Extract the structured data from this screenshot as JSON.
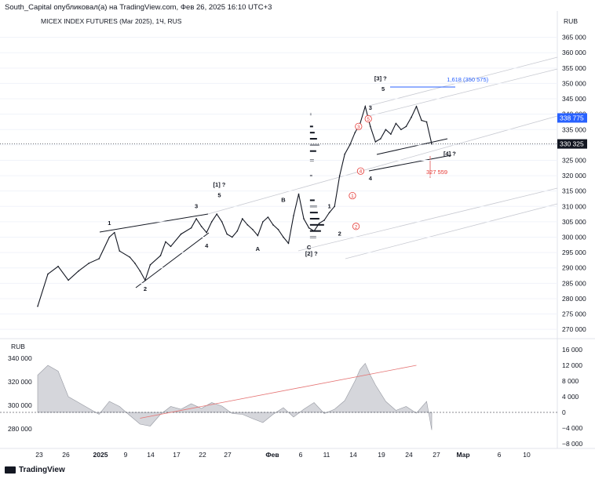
{
  "header": {
    "attribution": "South_Capital опубликовал(а) на TradingView.com, Фев 26, 2025 16:10 UTC+3"
  },
  "symbol": {
    "title": "MICEX INDEX FUTURES (Mar 2025), 1Ч, RUS"
  },
  "currency": {
    "main": "RUB",
    "lower": "RUB"
  },
  "footer": {
    "brand": "TradingView"
  },
  "chart_data": [
    {
      "type": "line",
      "name": "price",
      "title": "MICEX INDEX FUTURES (Mar 2025), 1Ч, RUS",
      "ylim": [
        268000,
        370000
      ],
      "yticks": [
        365000,
        360000,
        355000,
        350000,
        345000,
        340000,
        335000,
        330000,
        325000,
        320000,
        315000,
        310000,
        305000,
        300000,
        295000,
        290000,
        285000,
        280000,
        275000,
        270000
      ],
      "x_days": [
        "23",
        "26",
        "2025",
        "9",
        "14",
        "17",
        "22",
        "27",
        "Фев",
        "6",
        "11",
        "14",
        "19",
        "24",
        "27",
        "Мар",
        "6",
        "10"
      ],
      "series": [
        {
          "name": "MIX hourly close (approx.)",
          "points": [
            [
              0,
              277500
            ],
            [
              2,
              288000
            ],
            [
              4,
              290500
            ],
            [
              6,
              286000
            ],
            [
              8,
              289000
            ],
            [
              10,
              291500
            ],
            [
              12,
              293000
            ],
            [
              14,
              300000
            ],
            [
              15,
              301500
            ],
            [
              16,
              295500
            ],
            [
              18,
              293500
            ],
            [
              19,
              291500
            ],
            [
              20,
              289000
            ],
            [
              21,
              286000
            ],
            [
              22,
              291000
            ],
            [
              24,
              294000
            ],
            [
              25,
              298500
            ],
            [
              26,
              297000
            ],
            [
              28,
              301000
            ],
            [
              30,
              303000
            ],
            [
              31,
              306000
            ],
            [
              32,
              303500
            ],
            [
              33,
              301500
            ],
            [
              34,
              305000
            ],
            [
              35,
              307500
            ],
            [
              36,
              305000
            ],
            [
              37,
              301000
            ],
            [
              38,
              300000
            ],
            [
              39,
              302000
            ],
            [
              40,
              306000
            ],
            [
              41,
              304000
            ],
            [
              42,
              302500
            ],
            [
              43,
              300500
            ],
            [
              44,
              305000
            ],
            [
              45,
              306500
            ],
            [
              46,
              304000
            ],
            [
              47,
              302500
            ],
            [
              48,
              300000
            ],
            [
              49,
              298000
            ],
            [
              50,
              307000
            ],
            [
              51,
              314000
            ],
            [
              52,
              306000
            ],
            [
              53,
              303000
            ],
            [
              54,
              302000
            ],
            [
              55,
              304500
            ],
            [
              56,
              305500
            ],
            [
              57,
              308000
            ],
            [
              58,
              310000
            ],
            [
              59,
              320000
            ],
            [
              60,
              327000
            ],
            [
              61,
              330000
            ],
            [
              62,
              334000
            ],
            [
              63,
              337000
            ],
            [
              64,
              342500
            ],
            [
              65,
              336000
            ],
            [
              66,
              331000
            ],
            [
              67,
              332000
            ],
            [
              68,
              335000
            ],
            [
              69,
              333500
            ],
            [
              70,
              337000
            ],
            [
              71,
              335000
            ],
            [
              72,
              336000
            ],
            [
              73,
              339000
            ],
            [
              74,
              342500
            ],
            [
              75,
              338000
            ],
            [
              76,
              337500
            ],
            [
              77,
              330325
            ]
          ]
        }
      ],
      "price_labels": [
        {
          "value": 338775,
          "text": "338 775",
          "color": "#2962ff"
        },
        {
          "value": 330325,
          "text": "330 325",
          "color": "#131722"
        }
      ],
      "annotations": [
        {
          "text": "1",
          "x": 14,
          "y": 304000
        },
        {
          "text": "2",
          "x": 21,
          "y": 282500
        },
        {
          "text": "3",
          "x": 31,
          "y": 309500
        },
        {
          "text": "4",
          "x": 33,
          "y": 296500
        },
        {
          "text": "5",
          "x": 35.5,
          "y": 313000
        },
        {
          "text": "[1] ?",
          "x": 35.5,
          "y": 316500
        },
        {
          "text": "A",
          "x": 43,
          "y": 295500
        },
        {
          "text": "B",
          "x": 48,
          "y": 311500
        },
        {
          "text": "C",
          "x": 53,
          "y": 296000
        },
        {
          "text": "[2] ?",
          "x": 53.5,
          "y": 294000
        },
        {
          "text": "1",
          "x": 57,
          "y": 309500
        },
        {
          "text": "2",
          "x": 59,
          "y": 300500
        },
        {
          "text": "4",
          "x": 65,
          "y": 318500
        },
        {
          "text": "3",
          "x": 65,
          "y": 341500
        },
        {
          "text": "5",
          "x": 67.5,
          "y": 347500
        },
        {
          "text": "[3] ?",
          "x": 67,
          "y": 351000
        },
        {
          "text": "[4] ?",
          "x": 80.5,
          "y": 326500
        },
        {
          "text": "1,618 (350 575)",
          "x": 84,
          "y": 350575,
          "color": "#2962ff"
        },
        {
          "text": "327 559",
          "x": 78,
          "y": 320500,
          "color": "#e53935"
        }
      ],
      "circled_labels": [
        {
          "text": "1",
          "x": 61.5,
          "y": 313500
        },
        {
          "text": "2",
          "x": 62.2,
          "y": 303500
        },
        {
          "text": "3",
          "x": 62.7,
          "y": 336000
        },
        {
          "text": "4",
          "x": 63.1,
          "y": 321500
        },
        {
          "text": "5",
          "x": 64.6,
          "y": 338500
        }
      ]
    },
    {
      "type": "area",
      "name": "oscillator",
      "ylim": [
        -8000,
        16000
      ],
      "yticks_right": [
        16000,
        12000,
        8000,
        4000,
        0,
        -4000,
        -8000
      ],
      "yticks_left": [
        340000,
        320000,
        300000,
        280000
      ],
      "series": [
        {
          "name": "oscillator",
          "points": [
            [
              0,
              9500
            ],
            [
              2,
              12000
            ],
            [
              4,
              10500
            ],
            [
              6,
              4000
            ],
            [
              8,
              2500
            ],
            [
              10,
              1000
            ],
            [
              12,
              -500
            ],
            [
              14,
              2800
            ],
            [
              16,
              1500
            ],
            [
              18,
              -800
            ],
            [
              20,
              -3000
            ],
            [
              22,
              -3500
            ],
            [
              24,
              -500
            ],
            [
              26,
              1500
            ],
            [
              28,
              800
            ],
            [
              30,
              2200
            ],
            [
              32,
              1000
            ],
            [
              34,
              2500
            ],
            [
              36,
              1600
            ],
            [
              38,
              -300
            ],
            [
              40,
              -500
            ],
            [
              42,
              -1600
            ],
            [
              44,
              -2600
            ],
            [
              46,
              -500
            ],
            [
              48,
              1200
            ],
            [
              50,
              -1200
            ],
            [
              52,
              800
            ],
            [
              54,
              2500
            ],
            [
              56,
              -300
            ],
            [
              58,
              800
            ],
            [
              60,
              3000
            ],
            [
              62,
              8000
            ],
            [
              63,
              11000
            ],
            [
              64,
              12500
            ],
            [
              65,
              9500
            ],
            [
              66,
              7000
            ],
            [
              68,
              2800
            ],
            [
              70,
              500
            ],
            [
              72,
              1500
            ],
            [
              74,
              -200
            ],
            [
              76,
              2800
            ],
            [
              77,
              -4500
            ]
          ]
        }
      ]
    }
  ]
}
